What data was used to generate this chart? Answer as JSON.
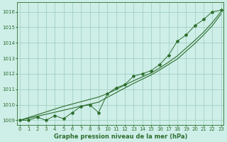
{
  "title": "Graphe pression niveau de la mer (hPa)",
  "bg_color": "#ceeee8",
  "grid_color": "#99ccbb",
  "line_color": "#2d6e2d",
  "x_ticks": [
    0,
    1,
    2,
    3,
    4,
    5,
    6,
    7,
    8,
    9,
    10,
    11,
    12,
    13,
    14,
    15,
    16,
    17,
    18,
    19,
    20,
    21,
    22,
    23
  ],
  "y_ticks": [
    1009,
    1010,
    1011,
    1012,
    1013,
    1014,
    1015,
    1016
  ],
  "ylim": [
    1008.7,
    1016.6
  ],
  "xlim": [
    -0.3,
    23.3
  ],
  "hourly_data": [
    1009.0,
    1009.0,
    1009.2,
    1009.0,
    1009.3,
    1009.1,
    1009.5,
    1009.9,
    1010.0,
    1009.5,
    1010.7,
    1011.1,
    1011.3,
    1011.85,
    1012.0,
    1012.2,
    1012.6,
    1013.2,
    1014.1,
    1014.5,
    1015.1,
    1015.5,
    1016.0,
    1016.1
  ],
  "smooth_line1": [
    1009.0,
    1009.13,
    1009.26,
    1009.39,
    1009.52,
    1009.65,
    1009.78,
    1009.91,
    1010.04,
    1010.17,
    1010.48,
    1010.78,
    1011.08,
    1011.38,
    1011.65,
    1011.92,
    1012.25,
    1012.6,
    1012.95,
    1013.45,
    1013.95,
    1014.5,
    1015.1,
    1015.85
  ],
  "smooth_line2": [
    1009.0,
    1009.18,
    1009.36,
    1009.54,
    1009.72,
    1009.9,
    1010.05,
    1010.2,
    1010.35,
    1010.5,
    1010.72,
    1010.98,
    1011.28,
    1011.55,
    1011.8,
    1012.05,
    1012.38,
    1012.75,
    1013.15,
    1013.65,
    1014.15,
    1014.68,
    1015.3,
    1016.0
  ],
  "title_fontsize": 6,
  "tick_fontsize": 5
}
